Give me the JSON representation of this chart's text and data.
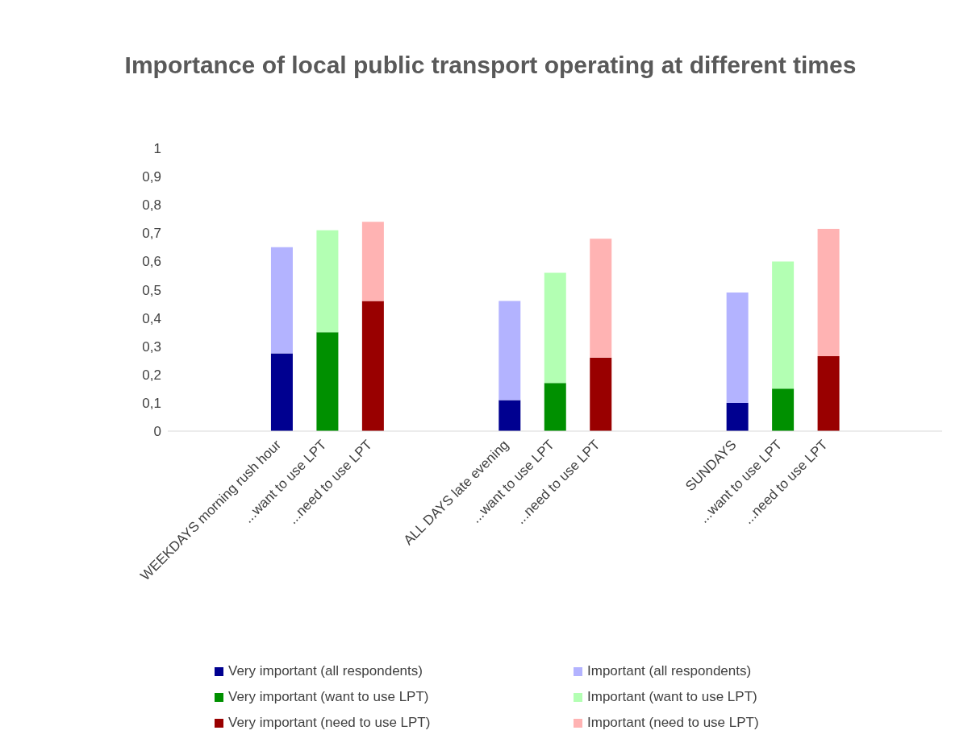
{
  "chart_data": {
    "type": "bar",
    "title": "Importance of local public transport operating at different times",
    "categories": [
      null,
      null,
      "WEEKDAYS morning rush hour",
      "...want to use LPT",
      "...need to use LPT",
      null,
      null,
      "ALL DAYS late evening",
      "...want to use LPT",
      "...need to use LPT",
      null,
      null,
      "SUNDAYS",
      "...want to use LPT",
      "...need to use LPT",
      null,
      null
    ],
    "series": [
      {
        "name": "Very important (all respondents)",
        "color": "#000090",
        "values": [
          null,
          null,
          0.275,
          null,
          null,
          null,
          null,
          0.11,
          null,
          null,
          null,
          null,
          0.1,
          null,
          null,
          null,
          null
        ]
      },
      {
        "name": "Important (all respondents)",
        "color": "#b3b3ff",
        "values": [
          null,
          null,
          0.375,
          null,
          null,
          null,
          null,
          0.35,
          null,
          null,
          null,
          null,
          0.39,
          null,
          null,
          null,
          null
        ]
      },
      {
        "name": "Very important (want to use LPT)",
        "color": "#009000",
        "values": [
          null,
          null,
          null,
          0.35,
          null,
          null,
          null,
          null,
          0.17,
          null,
          null,
          null,
          null,
          0.15,
          null,
          null,
          null
        ]
      },
      {
        "name": "Important (want to use LPT)",
        "color": "#b3ffb3",
        "values": [
          null,
          null,
          null,
          0.36,
          null,
          null,
          null,
          null,
          0.39,
          null,
          null,
          null,
          null,
          0.45,
          null,
          null,
          null
        ]
      },
      {
        "name": "Very important (need to use LPT)",
        "color": "#990000",
        "values": [
          null,
          null,
          null,
          null,
          0.46,
          null,
          null,
          null,
          null,
          0.26,
          null,
          null,
          null,
          null,
          0.265,
          null,
          null
        ]
      },
      {
        "name": "Important (need to use LPT)",
        "color": "#ffb3b3",
        "values": [
          null,
          null,
          null,
          null,
          0.28,
          null,
          null,
          null,
          null,
          0.42,
          null,
          null,
          null,
          null,
          0.45,
          null,
          null
        ]
      }
    ],
    "stacked": true,
    "ylim": [
      0,
      1
    ],
    "yticks": [
      0,
      {
        "value": 0.1,
        "label": "0,1"
      },
      {
        "value": 0.2,
        "label": "0,2"
      },
      {
        "value": 0.3,
        "label": "0,3"
      },
      {
        "value": 0.4,
        "label": "0,4"
      },
      {
        "value": 0.5,
        "label": "0,5"
      },
      {
        "value": 0.6,
        "label": "0,6"
      },
      {
        "value": 0.7,
        "label": "0,7"
      },
      {
        "value": 0.8,
        "label": "0,8"
      },
      {
        "value": 0.9,
        "label": "0,9"
      },
      1
    ],
    "grid": false,
    "legend": "bottom"
  }
}
